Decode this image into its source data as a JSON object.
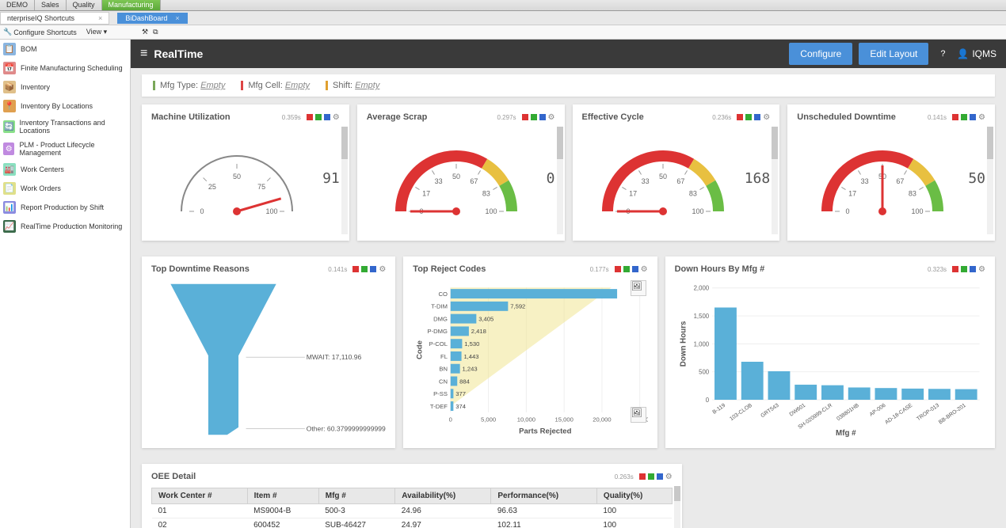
{
  "top_tabs": [
    "DEMO",
    "Sales",
    "Quality",
    "Manufacturing"
  ],
  "top_tab_active": 3,
  "shortcut_tab": "nterpriseIQ Shortcuts",
  "file_tab": "BiDashBoard",
  "config_items": [
    "Configure Shortcuts",
    "View ▾"
  ],
  "sidebar": [
    {
      "icon": "📋",
      "color": "#8ab5e0",
      "label": "BOM"
    },
    {
      "icon": "📅",
      "color": "#e08a8a",
      "label": "Finite Manufacturing Scheduling"
    },
    {
      "icon": "📦",
      "color": "#e0c08a",
      "label": "Inventory"
    },
    {
      "icon": "📍",
      "color": "#e0a050",
      "label": "Inventory By Locations"
    },
    {
      "icon": "🔄",
      "color": "#8ae08a",
      "label": "Inventory Transactions and Locations"
    },
    {
      "icon": "⚙",
      "color": "#c08ae0",
      "label": "PLM - Product Lifecycle Management"
    },
    {
      "icon": "🏭",
      "color": "#8ae0c0",
      "label": "Work Centers"
    },
    {
      "icon": "📄",
      "color": "#e0e08a",
      "label": "Work Orders"
    },
    {
      "icon": "📊",
      "color": "#8a8ae0",
      "label": "Report Production by Shift"
    },
    {
      "icon": "📈",
      "color": "#3a6a4a",
      "label": "RealTime Production Monitoring"
    }
  ],
  "dash_title": "RealTime",
  "header_buttons": {
    "configure": "Configure",
    "edit": "Edit Layout",
    "user": "IQMS"
  },
  "filters": [
    {
      "color": "#7aa85a",
      "label": "Mfg Type:",
      "value": "Empty"
    },
    {
      "color": "#d44",
      "label": "Mfg Cell:",
      "value": "Empty"
    },
    {
      "color": "#e0a030",
      "label": "Shift:",
      "value": "Empty"
    }
  ],
  "gauges": [
    {
      "title": "Machine Utilization",
      "timing": "0.359s",
      "value": 91,
      "ticks": [
        0,
        25,
        50,
        75,
        100
      ],
      "style": "plain",
      "arc_color": "#888"
    },
    {
      "title": "Average Scrap",
      "timing": "0.297s",
      "value": 0,
      "ticks": [
        0,
        17,
        33,
        50,
        67,
        83,
        100
      ],
      "style": "colored"
    },
    {
      "title": "Effective Cycle",
      "timing": "0.236s",
      "value": 168,
      "ticks": [
        0,
        17,
        33,
        50,
        67,
        83,
        100
      ],
      "style": "colored",
      "needle_pos": 0
    },
    {
      "title": "Unscheduled Downtime",
      "timing": "0.141s",
      "value": 50,
      "ticks": [
        0,
        17,
        33,
        50,
        67,
        83,
        100
      ],
      "style": "colored"
    }
  ],
  "colored_arc": [
    {
      "from": 0,
      "to": 67,
      "color": "#d33"
    },
    {
      "from": 67,
      "to": 83,
      "color": "#e8c040"
    },
    {
      "from": 83,
      "to": 100,
      "color": "#6abd45"
    }
  ],
  "funnel": {
    "title": "Top Downtime Reasons",
    "timing": "0.141s",
    "color": "#5ab0d8",
    "labels": [
      {
        "text": "MWAIT: 17,110.96",
        "y": 105
      },
      {
        "text": "Other: 60.3799999999999",
        "y": 200
      }
    ]
  },
  "reject_chart": {
    "title": "Top Reject Codes",
    "timing": "0.177s",
    "y_label": "Code",
    "x_label": "Parts Rejected",
    "x_ticks": [
      0,
      5000,
      10000,
      15000,
      20000,
      25000
    ],
    "x_tick_labels": [
      "0",
      "5,000",
      "10,000",
      "15,000",
      "20,000",
      "25,000"
    ],
    "overlay_color": "#f0e48a",
    "bars": [
      {
        "code": "CO",
        "value": 22000,
        "label": ""
      },
      {
        "code": "T-DIM",
        "value": 7592,
        "label": "7,592"
      },
      {
        "code": "DMG",
        "value": 3405,
        "label": "3,405"
      },
      {
        "code": "P-DMG",
        "value": 2418,
        "label": "2,418"
      },
      {
        "code": "P-COL",
        "value": 1530,
        "label": "1,530"
      },
      {
        "code": "FL",
        "value": 1443,
        "label": "1,443"
      },
      {
        "code": "BN",
        "value": 1243,
        "label": "1,243"
      },
      {
        "code": "CN",
        "value": 884,
        "label": "884"
      },
      {
        "code": "P-SS",
        "value": 377,
        "label": "377"
      },
      {
        "code": "T-DEF",
        "value": 374,
        "label": "374"
      }
    ],
    "bar_color": "#5ab0d8"
  },
  "downhours_chart": {
    "title": "Down Hours By Mfg #",
    "timing": "0.323s",
    "y_label": "Down Hours",
    "x_label": "Mfg #",
    "y_ticks": [
      0,
      500,
      1000,
      1500,
      2000
    ],
    "y_tick_labels": [
      "0",
      "500",
      "1,000",
      "1,500",
      "2,000"
    ],
    "bar_color": "#5ab0d8",
    "bars": [
      {
        "label": "B-119",
        "value": 1650
      },
      {
        "label": "103-CLOB",
        "value": 680
      },
      {
        "label": "GRT543",
        "value": 510
      },
      {
        "label": "DW601",
        "value": 270
      },
      {
        "label": "SH-020999-CLR",
        "value": 260
      },
      {
        "label": "038801HB",
        "value": 220
      },
      {
        "label": "AP-006",
        "value": 210
      },
      {
        "label": "AD-18-CASE",
        "value": 200
      },
      {
        "label": "TROP-013",
        "value": 195
      },
      {
        "label": "BB-BRO-201",
        "value": 190
      }
    ]
  },
  "oee": {
    "title": "OEE Detail",
    "timing": "0.263s",
    "columns": [
      "Work Center #",
      "Item #",
      "Mfg #",
      "Availability(%)",
      "Performance(%)",
      "Quality(%)"
    ],
    "rows": [
      [
        "01",
        "MS9004-B",
        "500-3",
        "24.96",
        "96.63",
        "100"
      ],
      [
        "02",
        "600452",
        "SUB-46427",
        "24.97",
        "102.11",
        "100"
      ]
    ]
  }
}
